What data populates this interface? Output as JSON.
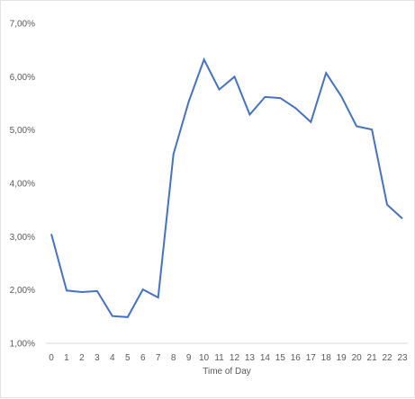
{
  "chart_data": {
    "type": "line",
    "title": "",
    "xlabel": "Time of Day",
    "ylabel": "",
    "x": [
      0,
      1,
      2,
      3,
      4,
      5,
      6,
      7,
      8,
      9,
      10,
      11,
      12,
      13,
      14,
      15,
      16,
      17,
      18,
      19,
      20,
      21,
      22,
      23
    ],
    "categories": [
      "0",
      "1",
      "2",
      "3",
      "4",
      "5",
      "6",
      "7",
      "8",
      "9",
      "10",
      "11",
      "12",
      "13",
      "14",
      "15",
      "16",
      "17",
      "18",
      "19",
      "20",
      "21",
      "22",
      "23"
    ],
    "series": [
      {
        "values": [
          3.05,
          1.99,
          1.96,
          1.98,
          1.51,
          1.49,
          2.01,
          1.86,
          4.55,
          5.53,
          6.32,
          5.76,
          6.0,
          5.29,
          5.62,
          5.6,
          5.41,
          5.15,
          6.07,
          5.63,
          5.07,
          5.01,
          3.6,
          3.34
        ],
        "color": "#4472c4"
      }
    ],
    "ylim": [
      1,
      7
    ],
    "yticks": [
      1,
      2,
      3,
      4,
      5,
      6,
      7
    ],
    "ytick_labels": [
      "1,00%",
      "2,00%",
      "3,00%",
      "4,00%",
      "5,00%",
      "6,00%",
      "7,00%"
    ],
    "grid": false,
    "legend": "none"
  }
}
